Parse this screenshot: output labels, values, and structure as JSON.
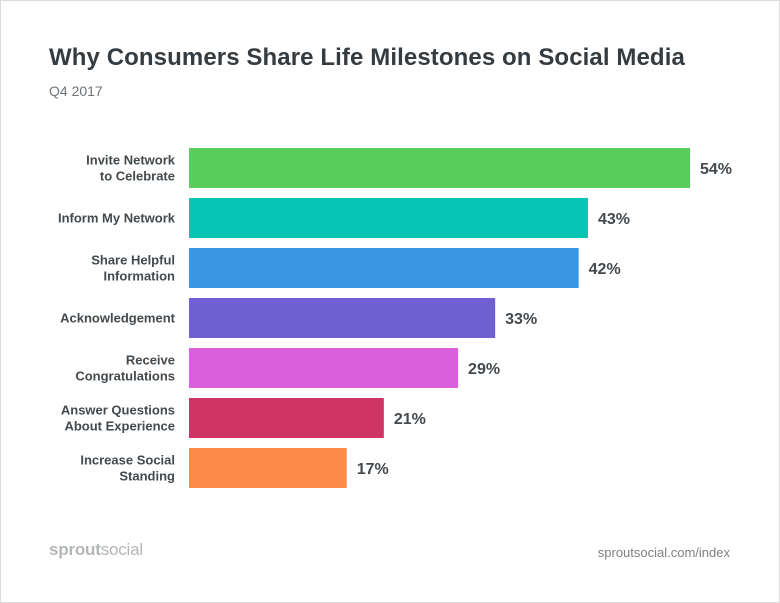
{
  "header": {
    "title": "Why Consumers Share Life Milestones on Social Media",
    "subtitle": "Q4 2017"
  },
  "chart_data": {
    "type": "bar",
    "orientation": "horizontal",
    "title": "Why Consumers Share Life Milestones on Social Media",
    "subtitle": "Q4 2017",
    "xlabel": "",
    "ylabel": "",
    "xlim": [
      0,
      54
    ],
    "value_suffix": "%",
    "categories": [
      [
        "Invite Network",
        "to Celebrate"
      ],
      [
        "Inform My Network"
      ],
      [
        "Share Helpful",
        "Information"
      ],
      [
        "Acknowledgement"
      ],
      [
        "Receive",
        "Congratulations"
      ],
      [
        "Answer Questions",
        "About Experience"
      ],
      [
        "Increase Social",
        "Standing"
      ]
    ],
    "values": [
      54,
      43,
      42,
      33,
      29,
      21,
      17
    ],
    "value_labels": [
      "54%",
      "43%",
      "42%",
      "33%",
      "29%",
      "21%",
      "17%"
    ],
    "colors": [
      "#59cd5b",
      "#06c5b5",
      "#3a95e3",
      "#6f5fd3",
      "#da5fdd",
      "#cf3564",
      "#fd8b47"
    ]
  },
  "footer": {
    "brand_bold": "sprout",
    "brand_light": "social",
    "source": "sproutsocial.com/index"
  }
}
